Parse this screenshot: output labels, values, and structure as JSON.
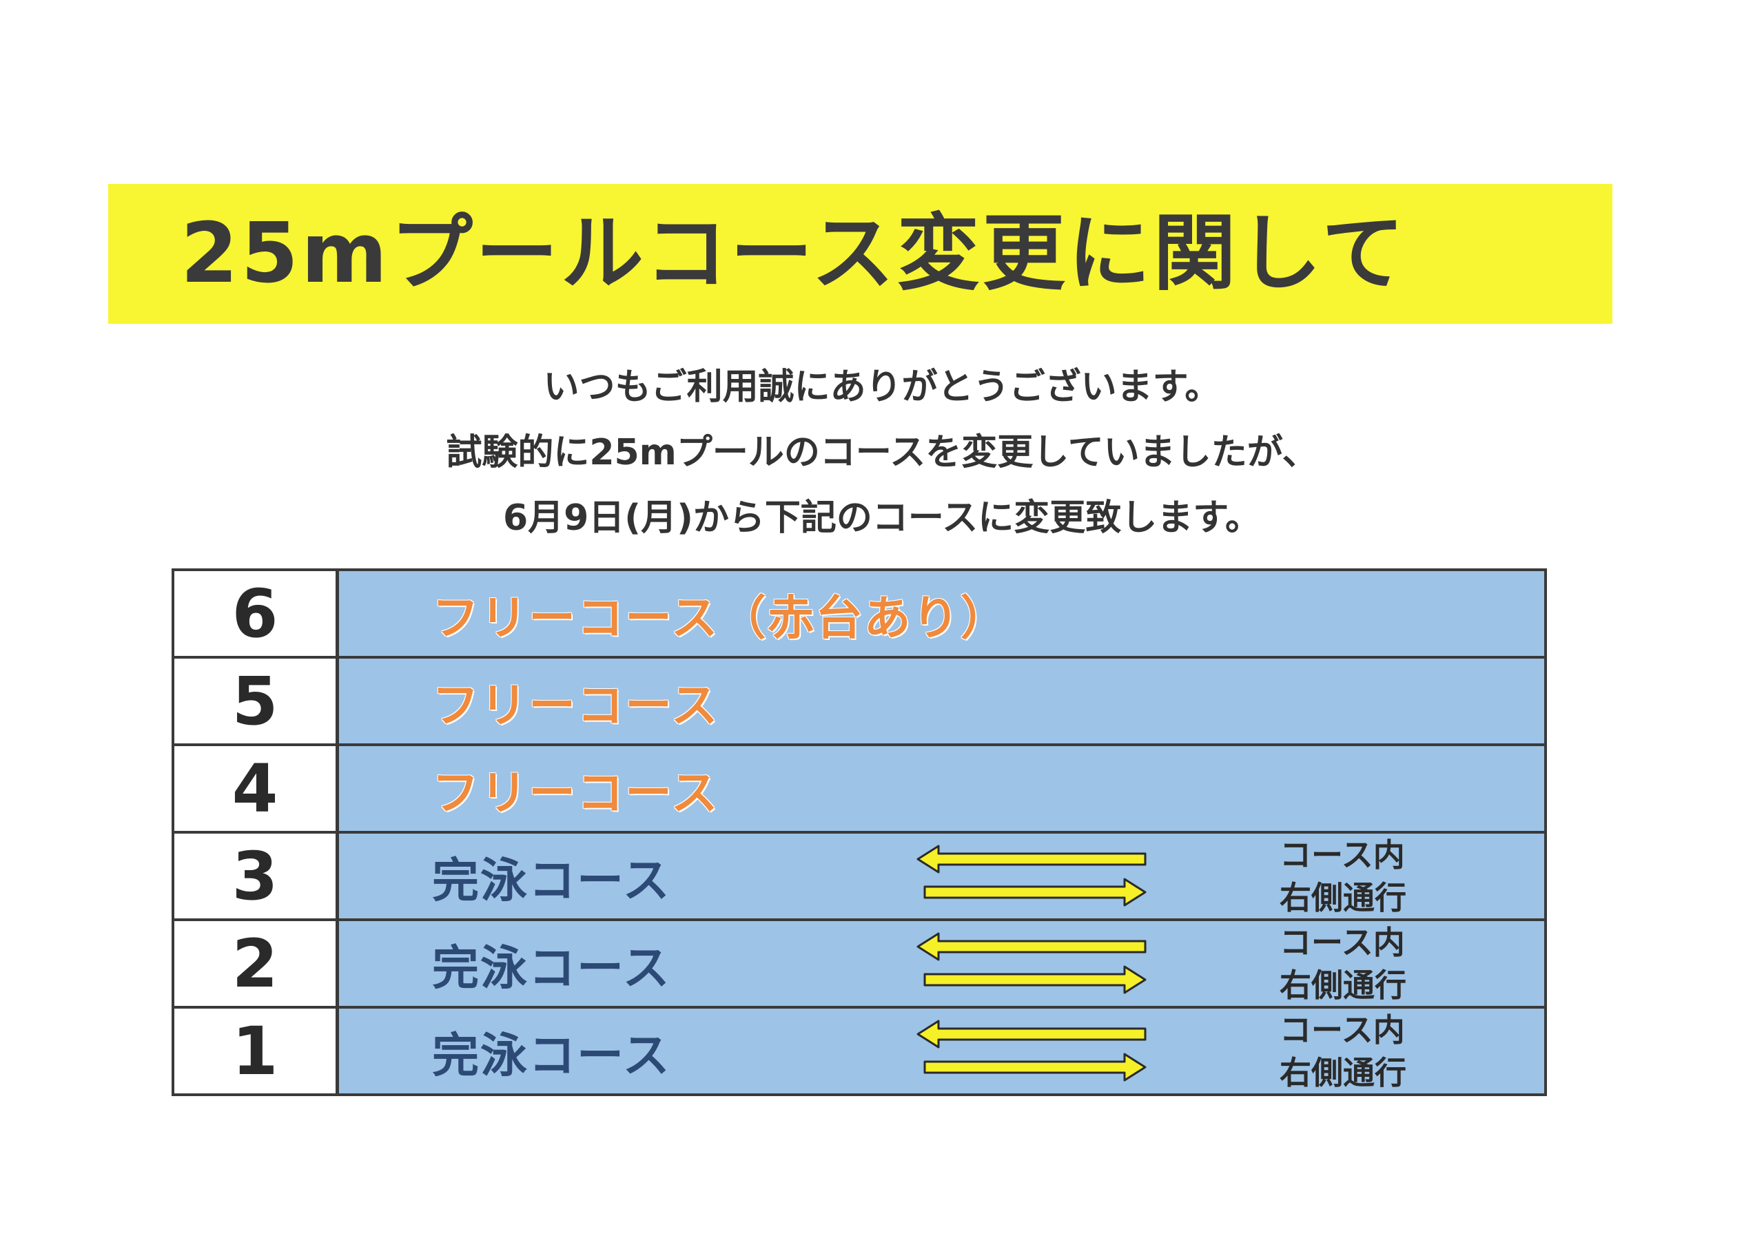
{
  "title": "25mプールコース変更に関して",
  "intro": {
    "line1": "いつもご利用誠にありがとうございます。",
    "line2": "試験的に25mプールのコースを変更していましたが、",
    "line3": "6月9日(月)から下記のコースに変更致します。"
  },
  "lanes": [
    {
      "number": "6",
      "label": "フリーコース（赤台あり）",
      "type": "free"
    },
    {
      "number": "5",
      "label": "フリーコース",
      "type": "free"
    },
    {
      "number": "4",
      "label": "フリーコース",
      "type": "free"
    },
    {
      "number": "3",
      "label": "完泳コース",
      "type": "lap",
      "note_line1": "コース内",
      "note_line2": "右側通行"
    },
    {
      "number": "2",
      "label": "完泳コース",
      "type": "lap",
      "note_line1": "コース内",
      "note_line2": "右側通行"
    },
    {
      "number": "1",
      "label": "完泳コース",
      "type": "lap",
      "note_line1": "コース内",
      "note_line2": "右側通行"
    }
  ],
  "colors": {
    "banner": "#f8f533",
    "lane_water": "#9dc3e6",
    "free_label": "#f08a3c",
    "lap_label": "#2c4a75",
    "arrow_fill": "#f5f028"
  }
}
